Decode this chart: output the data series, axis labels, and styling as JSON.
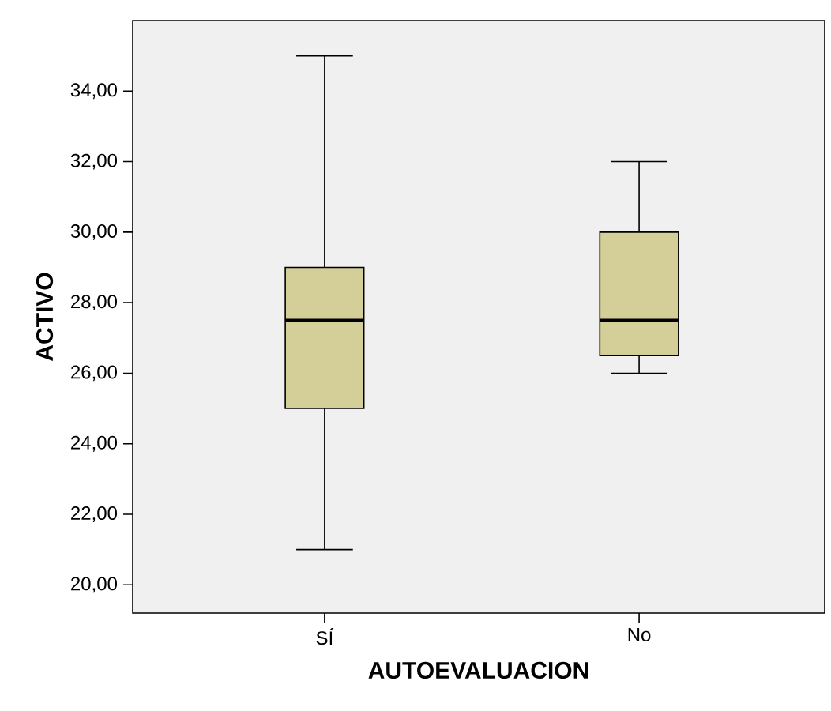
{
  "chart_data": {
    "type": "box",
    "xlabel": "AUTOEVALUACION",
    "ylabel": "ACTIVO",
    "categories": [
      "SÍ",
      "No"
    ],
    "color": "#d4cf98",
    "ylim": [
      19.2,
      36.0
    ],
    "yticks": [
      {
        "value": 20,
        "label": "20,00"
      },
      {
        "value": 22,
        "label": "22,00"
      },
      {
        "value": 24,
        "label": "24,00"
      },
      {
        "value": 26,
        "label": "26,00"
      },
      {
        "value": 28,
        "label": "28,00"
      },
      {
        "value": 30,
        "label": "30,00"
      },
      {
        "value": 32,
        "label": "32,00"
      },
      {
        "value": 34,
        "label": "34,00"
      }
    ],
    "boxes": [
      {
        "low": 21.0,
        "q1": 25.0,
        "median": 27.5,
        "q3": 29.0,
        "high": 35.0
      },
      {
        "low": 26.0,
        "q1": 26.5,
        "median": 27.5,
        "q3": 30.0,
        "high": 32.0
      }
    ],
    "grid": false
  }
}
